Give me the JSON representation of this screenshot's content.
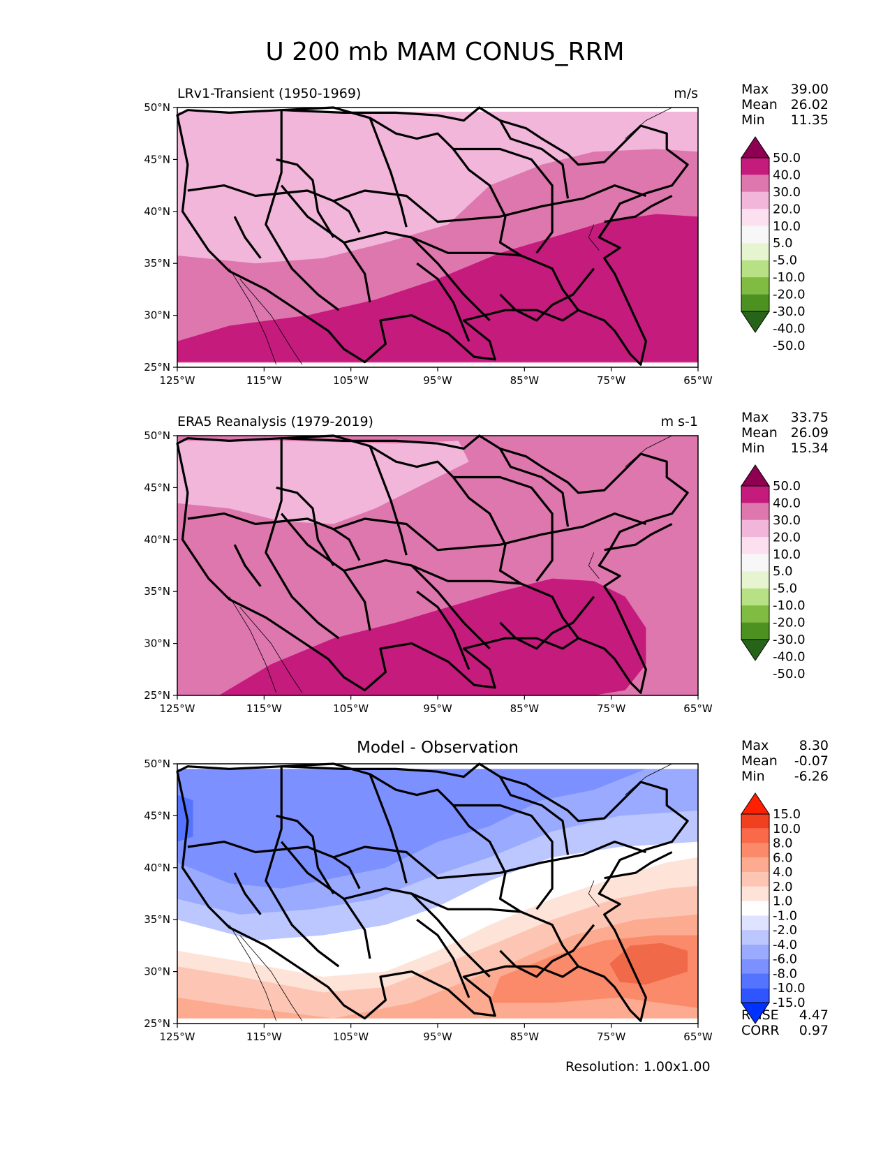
{
  "title": "U 200 mb MAM CONUS_RRM",
  "resolution": "Resolution: 1.00x1.00",
  "chart_data": [
    {
      "type": "heatmap",
      "panel": "test",
      "title_left": "LRv1-Transient (1950-1969)",
      "title_right": "m/s",
      "x_ticks": [
        "125°W",
        "115°W",
        "105°W",
        "95°W",
        "85°W",
        "75°W",
        "65°W"
      ],
      "y_ticks": [
        "25°N",
        "30°N",
        "35°N",
        "40°N",
        "45°N",
        "50°N"
      ],
      "xlim": [
        -125,
        -65
      ],
      "ylim": [
        25,
        50
      ],
      "stats": [
        {
          "label": "Max",
          "value": "39.00"
        },
        {
          "label": "Mean",
          "value": "26.02"
        },
        {
          "label": "Min",
          "value": "11.35"
        }
      ],
      "colorbar": {
        "levels": [
          "50.0",
          "40.0",
          "30.0",
          "20.0",
          "10.0",
          "5.0",
          "-5.0",
          "-10.0",
          "-20.0",
          "-30.0",
          "-40.0",
          "-50.0"
        ],
        "colors": [
          "#8e0152",
          "#c51b7d",
          "#de77ae",
          "#f1b6da",
          "#fde0ef",
          "#f7f7f7",
          "#e6f5d0",
          "#b8e186",
          "#7fbc41",
          "#4d9221",
          "#276419"
        ]
      },
      "bands": [
        {
          "range": "10-20",
          "color": "#f1b6da"
        },
        {
          "range": "20-30",
          "color": "#de77ae"
        },
        {
          "range": "30-40",
          "color": "#c51b7d"
        }
      ]
    },
    {
      "type": "heatmap",
      "panel": "reference",
      "title_left": "ERA5 Reanalysis (1979-2019)",
      "title_right": "m s-1",
      "x_ticks": [
        "125°W",
        "115°W",
        "105°W",
        "95°W",
        "85°W",
        "75°W",
        "65°W"
      ],
      "y_ticks": [
        "25°N",
        "30°N",
        "35°N",
        "40°N",
        "45°N",
        "50°N"
      ],
      "xlim": [
        -125,
        -65
      ],
      "ylim": [
        25,
        50
      ],
      "stats": [
        {
          "label": "Max",
          "value": "33.75"
        },
        {
          "label": "Mean",
          "value": "26.09"
        },
        {
          "label": "Min",
          "value": "15.34"
        }
      ],
      "colorbar": {
        "levels": [
          "50.0",
          "40.0",
          "30.0",
          "20.0",
          "10.0",
          "5.0",
          "-5.0",
          "-10.0",
          "-20.0",
          "-30.0",
          "-40.0",
          "-50.0"
        ],
        "colors": [
          "#8e0152",
          "#c51b7d",
          "#de77ae",
          "#f1b6da",
          "#fde0ef",
          "#f7f7f7",
          "#e6f5d0",
          "#b8e186",
          "#7fbc41",
          "#4d9221",
          "#276419"
        ]
      },
      "bands": [
        {
          "range": "10-20",
          "color": "#f1b6da"
        },
        {
          "range": "20-30",
          "color": "#de77ae"
        },
        {
          "range": "30-40",
          "color": "#c51b7d"
        }
      ]
    },
    {
      "type": "heatmap",
      "panel": "difference",
      "title_center": "Model - Observation",
      "x_ticks": [
        "125°W",
        "115°W",
        "105°W",
        "95°W",
        "85°W",
        "75°W",
        "65°W"
      ],
      "y_ticks": [
        "25°N",
        "30°N",
        "35°N",
        "40°N",
        "45°N",
        "50°N"
      ],
      "xlim": [
        -125,
        -65
      ],
      "ylim": [
        25,
        50
      ],
      "stats": [
        {
          "label": "Max",
          "value": "8.30"
        },
        {
          "label": "Mean",
          "value": "-0.07"
        },
        {
          "label": "Min",
          "value": "-6.26"
        }
      ],
      "extra_stats": [
        {
          "label": "RMSE",
          "value": "4.47"
        },
        {
          "label": "CORR",
          "value": "0.97"
        }
      ],
      "colorbar": {
        "levels": [
          "15.0",
          "10.0",
          "8.0",
          "6.0",
          "4.0",
          "2.0",
          "1.0",
          "-1.0",
          "-2.0",
          "-4.0",
          "-6.0",
          "-8.0",
          "-10.0",
          "-15.0"
        ],
        "colors": [
          "#ff2000",
          "#f04020",
          "#fa6a4a",
          "#fb8a6a",
          "#fcaa90",
          "#fdc6b4",
          "#fde3d8",
          "#ffffff",
          "#dfe3ff",
          "#bcc6ff",
          "#9aaaff",
          "#7c90ff",
          "#5473ff",
          "#2f55ff",
          "#0032ff"
        ]
      },
      "bands": [
        {
          "range": "-6--4",
          "color": "#7c90ff"
        },
        {
          "range": "-4--2",
          "color": "#9aaaff"
        },
        {
          "range": "-2--1",
          "color": "#bcc6ff"
        },
        {
          "range": "-1-1",
          "color": "#ffffff"
        },
        {
          "range": "1-2",
          "color": "#fde3d8"
        },
        {
          "range": "2-4",
          "color": "#fdc6b4"
        },
        {
          "range": "4-6",
          "color": "#fcaa90"
        },
        {
          "range": "6-8",
          "color": "#fb8a6a"
        }
      ]
    }
  ]
}
